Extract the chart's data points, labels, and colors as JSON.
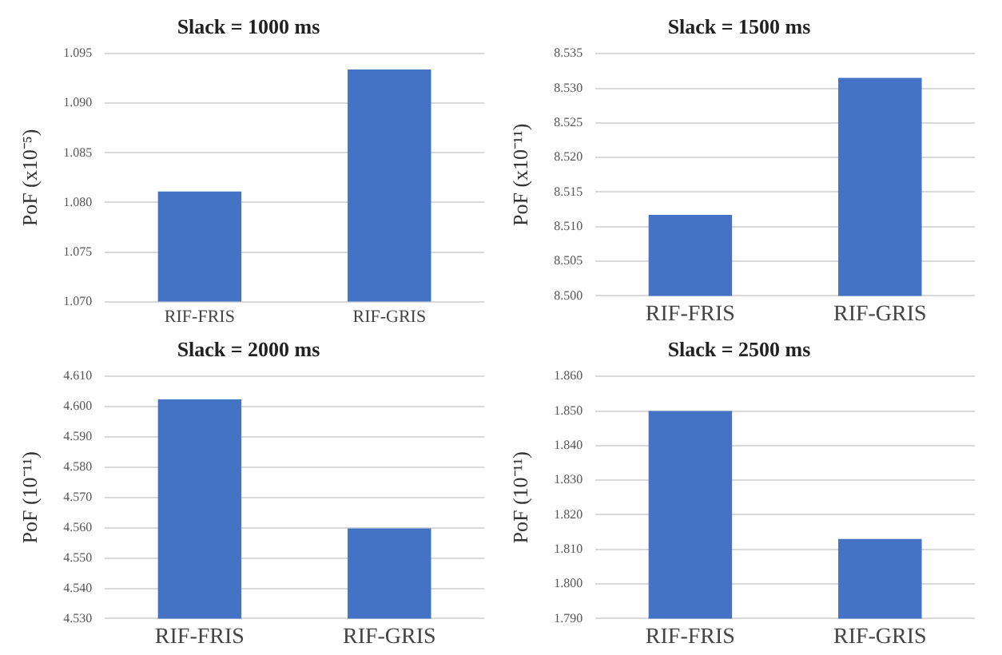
{
  "chart_data": [
    {
      "type": "bar",
      "title": "Slack = 1000 ms",
      "ylabel": "PoF (x10⁻⁵)",
      "categories": [
        "RIF-FRIS",
        "RIF-GRIS"
      ],
      "values": [
        1.0811,
        1.0934
      ],
      "color": "#4472c4",
      "ylim": [
        1.07,
        1.095
      ],
      "yticks": [
        {
          "value": 1.07,
          "label": "1.070"
        },
        {
          "value": 1.075,
          "label": "1.075"
        },
        {
          "value": 1.08,
          "label": "1.080"
        },
        {
          "value": 1.085,
          "label": "1.085"
        },
        {
          "value": 1.09,
          "label": "1.090"
        },
        {
          "value": 1.095,
          "label": "1.095"
        }
      ],
      "grid": "y",
      "legend": false
    },
    {
      "type": "bar",
      "title": "Slack = 1500 ms",
      "ylabel": "PoF (x10⁻¹¹)",
      "categories": [
        "RIF-FRIS",
        "RIF-GRIS"
      ],
      "values": [
        8.5117,
        8.5315
      ],
      "color": "#4472c4",
      "ylim": [
        8.5,
        8.535
      ],
      "yticks": [
        {
          "value": 8.5,
          "label": "8.500"
        },
        {
          "value": 8.505,
          "label": "8.505"
        },
        {
          "value": 8.51,
          "label": "8.510"
        },
        {
          "value": 8.515,
          "label": "8.515"
        },
        {
          "value": 8.52,
          "label": "8.520"
        },
        {
          "value": 8.525,
          "label": "8.525"
        },
        {
          "value": 8.53,
          "label": "8.530"
        },
        {
          "value": 8.535,
          "label": "8.535"
        }
      ],
      "grid": "y",
      "legend": false
    },
    {
      "type": "bar",
      "title": "Slack = 2000 ms",
      "ylabel": "PoF (10⁻¹¹)",
      "categories": [
        "RIF-FRIS",
        "RIF-GRIS"
      ],
      "values": [
        4.6024,
        4.5598
      ],
      "color": "#4472c4",
      "ylim": [
        4.53,
        4.61
      ],
      "yticks": [
        {
          "value": 4.53,
          "label": "4.530"
        },
        {
          "value": 4.54,
          "label": "4.540"
        },
        {
          "value": 4.55,
          "label": "4.550"
        },
        {
          "value": 4.56,
          "label": "4.560"
        },
        {
          "value": 4.57,
          "label": "4.570"
        },
        {
          "value": 4.58,
          "label": "4.580"
        },
        {
          "value": 4.59,
          "label": "4.590"
        },
        {
          "value": 4.6,
          "label": "4.600"
        },
        {
          "value": 4.61,
          "label": "4.610"
        }
      ],
      "grid": "y",
      "legend": false
    },
    {
      "type": "bar",
      "title": "Slack = 2500 ms",
      "ylabel": "PoF (10⁻¹¹)",
      "categories": [
        "RIF-FRIS",
        "RIF-GRIS"
      ],
      "values": [
        1.85,
        1.813
      ],
      "color": "#4472c4",
      "ylim": [
        1.79,
        1.86
      ],
      "yticks": [
        {
          "value": 1.79,
          "label": "1.790"
        },
        {
          "value": 1.8,
          "label": "1.800"
        },
        {
          "value": 1.81,
          "label": "1.810"
        },
        {
          "value": 1.82,
          "label": "1.820"
        },
        {
          "value": 1.83,
          "label": "1.830"
        },
        {
          "value": 1.84,
          "label": "1.840"
        },
        {
          "value": 1.85,
          "label": "1.850"
        },
        {
          "value": 1.86,
          "label": "1.860"
        }
      ],
      "grid": "y",
      "legend": false
    }
  ]
}
